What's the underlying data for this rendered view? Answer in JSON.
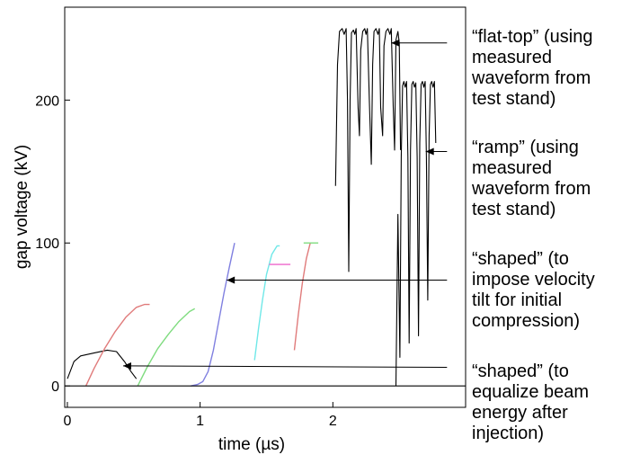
{
  "chart_data": {
    "type": "line",
    "xlabel": "time (µs)",
    "ylabel": "gap voltage (kV)",
    "xlim": [
      -0.02,
      3.0
    ],
    "ylim": [
      -15,
      265
    ],
    "x_ticks": [
      {
        "v": 0,
        "label": "0"
      },
      {
        "v": 1,
        "label": "1"
      },
      {
        "v": 2,
        "label": "2"
      }
    ],
    "y_ticks": [
      {
        "v": 0,
        "label": "0"
      },
      {
        "v": 100,
        "label": "100"
      },
      {
        "v": 200,
        "label": "200"
      }
    ],
    "grid": false,
    "series": [
      {
        "color": "#000000",
        "values": [
          [
            0.0,
            5
          ],
          [
            0.05,
            17
          ],
          [
            0.1,
            21
          ],
          [
            0.2,
            23
          ],
          [
            0.3,
            25
          ],
          [
            0.37,
            24
          ],
          [
            0.43,
            17
          ],
          [
            0.48,
            10
          ],
          [
            0.52,
            5
          ]
        ]
      },
      {
        "color": "#e07b7b",
        "values": [
          [
            0.14,
            0
          ],
          [
            0.2,
            12
          ],
          [
            0.28,
            26
          ],
          [
            0.36,
            38
          ],
          [
            0.44,
            48
          ],
          [
            0.52,
            55
          ],
          [
            0.58,
            57
          ],
          [
            0.62,
            57
          ]
        ]
      },
      {
        "color": "#7fdc7f",
        "values": [
          [
            0.53,
            0
          ],
          [
            0.6,
            13
          ],
          [
            0.68,
            26
          ],
          [
            0.76,
            36
          ],
          [
            0.84,
            45
          ],
          [
            0.92,
            52
          ],
          [
            0.96,
            54
          ]
        ]
      },
      {
        "color": "#8080e0",
        "values": [
          [
            0.93,
            0
          ],
          [
            0.98,
            1
          ],
          [
            1.02,
            3
          ],
          [
            1.06,
            10
          ],
          [
            1.1,
            25
          ],
          [
            1.14,
            45
          ],
          [
            1.18,
            65
          ],
          [
            1.22,
            83
          ],
          [
            1.26,
            100
          ]
        ]
      },
      {
        "color": "#6fe8e8",
        "values": [
          [
            1.41,
            18
          ],
          [
            1.44,
            40
          ],
          [
            1.47,
            60
          ],
          [
            1.5,
            78
          ],
          [
            1.54,
            92
          ],
          [
            1.58,
            98
          ],
          [
            1.6,
            98
          ]
        ]
      },
      {
        "color": "#ee66cc",
        "values": [
          [
            1.52,
            85
          ],
          [
            1.68,
            85
          ]
        ]
      },
      {
        "color": "#e07b7b",
        "values": [
          [
            1.71,
            25
          ],
          [
            1.74,
            50
          ],
          [
            1.77,
            72
          ],
          [
            1.8,
            89
          ],
          [
            1.83,
            100
          ]
        ]
      },
      {
        "color": "#7fdc7f",
        "values": [
          [
            1.78,
            100
          ],
          [
            1.89,
            100
          ]
        ]
      },
      {
        "color": "#000000",
        "values": [
          [
            2.02,
            140
          ],
          [
            2.035,
            225
          ],
          [
            2.05,
            248
          ],
          [
            2.07,
            250
          ],
          [
            2.085,
            246
          ],
          [
            2.1,
            250
          ],
          [
            2.11,
            200
          ],
          [
            2.12,
            80
          ],
          [
            2.13,
            200
          ],
          [
            2.14,
            247
          ],
          [
            2.155,
            249
          ],
          [
            2.165,
            246
          ],
          [
            2.175,
            250
          ],
          [
            2.19,
            195
          ],
          [
            2.2,
            175
          ],
          [
            2.21,
            235
          ],
          [
            2.225,
            248
          ],
          [
            2.24,
            250
          ],
          [
            2.25,
            246
          ],
          [
            2.26,
            250
          ],
          [
            2.275,
            200
          ],
          [
            2.29,
            155
          ],
          [
            2.3,
            225
          ],
          [
            2.31,
            248
          ],
          [
            2.325,
            250
          ],
          [
            2.34,
            246
          ],
          [
            2.35,
            250
          ],
          [
            2.36,
            195
          ],
          [
            2.375,
            175
          ],
          [
            2.385,
            238
          ],
          [
            2.4,
            248
          ],
          [
            2.415,
            250
          ],
          [
            2.43,
            246
          ],
          [
            2.44,
            250
          ],
          [
            2.455,
            195
          ],
          [
            2.465,
            165
          ],
          [
            2.475,
            242
          ],
          [
            2.49,
            248
          ],
          [
            2.5,
            240
          ],
          [
            2.51,
            165
          ]
        ]
      },
      {
        "color": "#000000",
        "values": [
          [
            2.475,
            0
          ],
          [
            2.49,
            120
          ],
          [
            2.505,
            20
          ],
          [
            2.515,
            160
          ],
          [
            2.525,
            210
          ],
          [
            2.535,
            213
          ],
          [
            2.545,
            209
          ],
          [
            2.555,
            213
          ],
          [
            2.565,
            160
          ],
          [
            2.575,
            30
          ],
          [
            2.585,
            165
          ],
          [
            2.595,
            211
          ],
          [
            2.605,
            213
          ],
          [
            2.615,
            209
          ],
          [
            2.625,
            212
          ],
          [
            2.635,
            160
          ],
          [
            2.645,
            35
          ],
          [
            2.655,
            170
          ],
          [
            2.665,
            211
          ],
          [
            2.675,
            213
          ],
          [
            2.685,
            209
          ],
          [
            2.695,
            213
          ],
          [
            2.705,
            160
          ],
          [
            2.715,
            60
          ],
          [
            2.725,
            175
          ],
          [
            2.735,
            211
          ],
          [
            2.745,
            213
          ],
          [
            2.755,
            209
          ],
          [
            2.765,
            213
          ],
          [
            2.775,
            170
          ]
        ]
      },
      {
        "color": "#000000",
        "values": [
          [
            -0.02,
            0
          ],
          [
            3.0,
            0
          ]
        ]
      }
    ],
    "arrows": [
      {
        "from": [
          2.86,
          240
        ],
        "to": [
          2.44,
          240
        ]
      },
      {
        "from": [
          2.86,
          164
        ],
        "to": [
          2.7,
          164
        ]
      },
      {
        "from": [
          2.86,
          74
        ],
        "to": [
          1.2,
          74
        ]
      },
      {
        "from": [
          2.86,
          13
        ],
        "to": [
          0.42,
          14
        ]
      }
    ]
  },
  "annotations": [
    {
      "lines": [
        "“flat-top” (using",
        "measured",
        "waveform from",
        "test stand)"
      ]
    },
    {
      "lines": [
        "“ramp” (using",
        "measured",
        "waveform from",
        "test stand)"
      ]
    },
    {
      "lines": [
        "“shaped” (to",
        "impose velocity",
        "tilt for initial",
        "compression)"
      ]
    },
    {
      "lines": [
        "“shaped” (to",
        "equalize beam",
        "energy after",
        "injection)"
      ]
    }
  ]
}
